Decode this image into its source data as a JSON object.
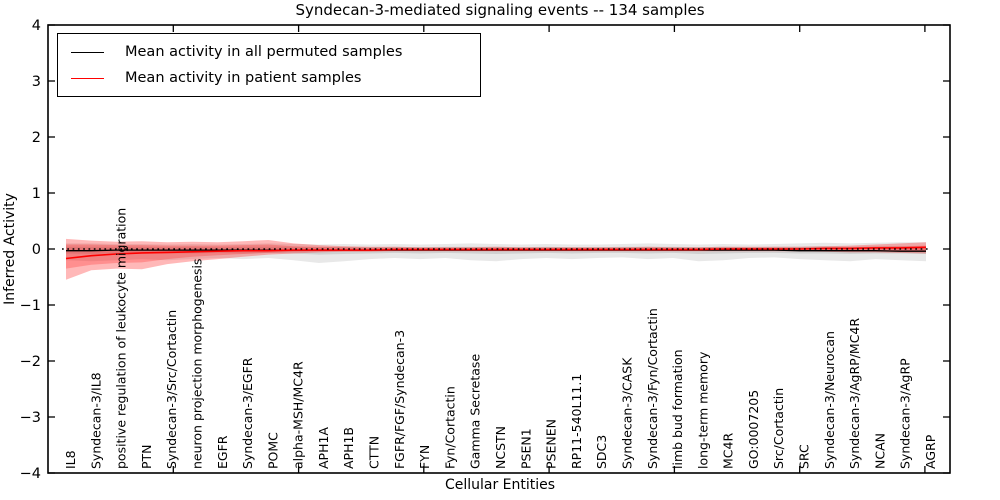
{
  "chart_data": {
    "type": "line",
    "title": "Syndecan-3-mediated signaling events -- 134 samples",
    "xlabel": "Cellular Entities",
    "ylabel": "Inferred Activity",
    "ylim": [
      -4,
      4
    ],
    "yticks": [
      {
        "v": -4,
        "label": "−4"
      },
      {
        "v": -3,
        "label": "−3"
      },
      {
        "v": -2,
        "label": "−2"
      },
      {
        "v": -1,
        "label": "−1"
      },
      {
        "v": 0,
        "label": "0"
      },
      {
        "v": 1,
        "label": "1"
      },
      {
        "v": 2,
        "label": "2"
      },
      {
        "v": 3,
        "label": "3"
      },
      {
        "v": 4,
        "label": "4"
      }
    ],
    "x_numeric_range": [
      0,
      36
    ],
    "xticks_numeric": [
      5,
      10,
      15,
      20,
      25,
      30,
      35
    ],
    "grid": false,
    "legend_position": "upper left",
    "reference_line": {
      "y": 0,
      "style": "dotted",
      "color": "#000000"
    },
    "categories": [
      "IL8",
      "Syndecan-3/IL8",
      "positive regulation of leukocyte migration",
      "PTN",
      "Syndecan-3/Src/Cortactin",
      "neuron projection morphogenesis",
      "EGFR",
      "Syndecan-3/EGFR",
      "POMC",
      "alpha-MSH/MC4R",
      "APH1A",
      "APH1B",
      "CTTN",
      "FGFR/FGF/Syndecan-3",
      "FYN",
      "Fyn/Cortactin",
      "Gamma Secretase",
      "NCSTN",
      "PSEN1",
      "PSENEN",
      "RP11-540L11.1",
      "SDC3",
      "Syndecan-3/CASK",
      "Syndecan-3/Fyn/Cortactin",
      "limb bud formation",
      "long-term memory",
      "MC4R",
      "GO:0007205",
      "Src/Cortactin",
      "SRC",
      "Syndecan-3/Neurocan",
      "Syndecan-3/AgRP/MC4R",
      "NCAN",
      "Syndecan-3/AgRP",
      "AGRP"
    ],
    "series": [
      {
        "name": "Mean activity in all permuted samples",
        "color": "#000000",
        "width": 1.3,
        "values": [
          -0.03,
          -0.03,
          -0.02,
          -0.02,
          -0.02,
          -0.02,
          -0.02,
          -0.02,
          -0.02,
          -0.02,
          -0.02,
          -0.02,
          -0.02,
          -0.02,
          -0.02,
          -0.02,
          -0.02,
          -0.02,
          -0.02,
          -0.02,
          -0.02,
          -0.02,
          -0.02,
          -0.02,
          -0.02,
          -0.02,
          -0.02,
          -0.02,
          -0.02,
          -0.03,
          -0.03,
          -0.03,
          -0.03,
          -0.04,
          -0.04
        ]
      },
      {
        "name": "Mean activity in patient samples",
        "color": "#ff0000",
        "width": 1.6,
        "values": [
          -0.17,
          -0.12,
          -0.09,
          -0.07,
          -0.06,
          -0.05,
          -0.04,
          -0.03,
          -0.03,
          -0.02,
          -0.02,
          -0.02,
          -0.02,
          -0.01,
          -0.01,
          -0.01,
          -0.01,
          -0.01,
          -0.01,
          -0.01,
          -0.01,
          -0.01,
          -0.01,
          -0.01,
          -0.01,
          -0.01,
          0,
          0,
          0,
          0,
          0.01,
          0.01,
          0.02,
          0.02,
          0.03
        ]
      }
    ],
    "bands": [
      {
        "name": "permuted-range-outer",
        "color": "rgba(0,0,0,0.09)",
        "upper": [
          0.1,
          0.1,
          0.09,
          0.09,
          0.08,
          0.09,
          0.08,
          0.09,
          0.1,
          0.09,
          0.08,
          0.09,
          0.08,
          0.09,
          0.08,
          0.09,
          0.1,
          0.09,
          0.08,
          0.09,
          0.08,
          0.08,
          0.09,
          0.1,
          0.09,
          0.08,
          0.09,
          0.08,
          0.09,
          0.1,
          0.11,
          0.1,
          0.11,
          0.12,
          0.12
        ],
        "lower": [
          -0.2,
          -0.22,
          -0.2,
          -0.18,
          -0.2,
          -0.18,
          -0.16,
          -0.18,
          -0.16,
          -0.2,
          -0.25,
          -0.22,
          -0.18,
          -0.16,
          -0.18,
          -0.16,
          -0.2,
          -0.22,
          -0.18,
          -0.16,
          -0.18,
          -0.16,
          -0.15,
          -0.18,
          -0.16,
          -0.22,
          -0.2,
          -0.16,
          -0.15,
          -0.18,
          -0.2,
          -0.22,
          -0.18,
          -0.2,
          -0.22
        ]
      },
      {
        "name": "permuted-range-inner",
        "color": "rgba(0,0,0,0.10)",
        "upper": [
          0.04,
          0.04,
          0.04,
          0.04,
          0.03,
          0.04,
          0.03,
          0.04,
          0.04,
          0.04,
          0.03,
          0.04,
          0.03,
          0.04,
          0.03,
          0.04,
          0.04,
          0.04,
          0.03,
          0.04,
          0.03,
          0.03,
          0.04,
          0.04,
          0.04,
          0.03,
          0.04,
          0.03,
          0.04,
          0.04,
          0.05,
          0.04,
          0.05,
          0.05,
          0.05
        ],
        "lower": [
          -0.08,
          -0.09,
          -0.08,
          -0.08,
          -0.08,
          -0.08,
          -0.07,
          -0.08,
          -0.07,
          -0.08,
          -0.1,
          -0.09,
          -0.08,
          -0.07,
          -0.08,
          -0.07,
          -0.08,
          -0.09,
          -0.08,
          -0.07,
          -0.08,
          -0.07,
          -0.07,
          -0.08,
          -0.07,
          -0.09,
          -0.08,
          -0.07,
          -0.07,
          -0.08,
          -0.08,
          -0.09,
          -0.08,
          -0.08,
          -0.09
        ]
      },
      {
        "name": "patient-range-outer",
        "color": "rgba(255,0,0,0.28)",
        "upper": [
          0.18,
          0.15,
          0.13,
          0.14,
          0.12,
          0.13,
          0.12,
          0.14,
          0.16,
          0.1,
          0.07,
          0.05,
          0.04,
          0.04,
          0.03,
          0.03,
          0.03,
          0.04,
          0.03,
          0.03,
          0.03,
          0.03,
          0.03,
          0.04,
          0.03,
          0.03,
          0.04,
          0.04,
          0.04,
          0.04,
          0.05,
          0.06,
          0.08,
          0.1,
          0.12
        ],
        "lower": [
          -0.55,
          -0.38,
          -0.35,
          -0.36,
          -0.27,
          -0.22,
          -0.18,
          -0.14,
          -0.1,
          -0.08,
          -0.06,
          -0.05,
          -0.05,
          -0.04,
          -0.04,
          -0.04,
          -0.04,
          -0.04,
          -0.04,
          -0.04,
          -0.04,
          -0.04,
          -0.04,
          -0.04,
          -0.04,
          -0.04,
          -0.04,
          -0.04,
          -0.04,
          -0.04,
          -0.05,
          -0.06,
          -0.06,
          -0.07,
          -0.08
        ]
      },
      {
        "name": "patient-range-inner",
        "color": "rgba(255,0,0,0.22)",
        "upper": [
          0.08,
          0.08,
          0.07,
          0.07,
          0.06,
          0.06,
          0.06,
          0.07,
          0.08,
          0.05,
          0.04,
          0.03,
          0.02,
          0.02,
          0.02,
          0.02,
          0.02,
          0.02,
          0.02,
          0.02,
          0.02,
          0.02,
          0.02,
          0.02,
          0.02,
          0.02,
          0.02,
          0.02,
          0.02,
          0.02,
          0.03,
          0.03,
          0.04,
          0.05,
          0.06
        ],
        "lower": [
          -0.35,
          -0.28,
          -0.25,
          -0.24,
          -0.18,
          -0.14,
          -0.11,
          -0.09,
          -0.07,
          -0.05,
          -0.04,
          -0.03,
          -0.03,
          -0.03,
          -0.03,
          -0.03,
          -0.03,
          -0.03,
          -0.03,
          -0.03,
          -0.03,
          -0.03,
          -0.03,
          -0.03,
          -0.03,
          -0.03,
          -0.03,
          -0.03,
          -0.03,
          -0.03,
          -0.03,
          -0.04,
          -0.04,
          -0.05,
          -0.05
        ]
      }
    ]
  }
}
